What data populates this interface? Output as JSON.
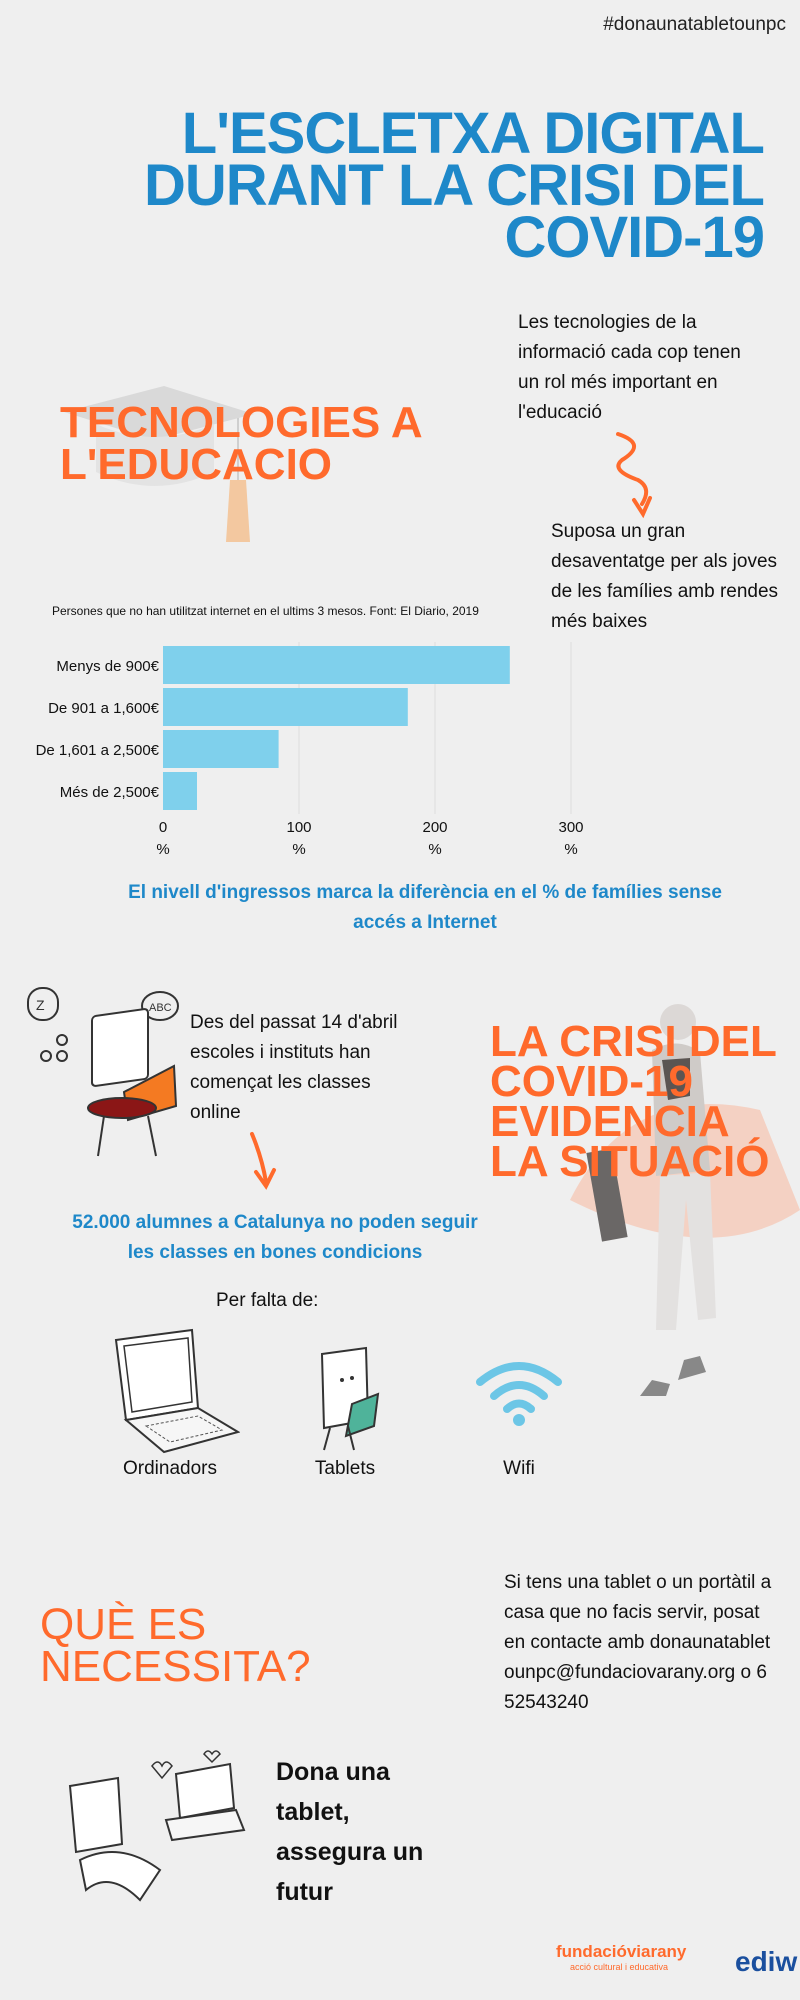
{
  "hashtag": "#donaunatabletounpc",
  "title_lines": [
    "L'ESCLETXA DIGITAL",
    "DURANT LA CRISI DEL",
    "COVID-19"
  ],
  "section1": {
    "title_lines": [
      "TECNOLOGIES A",
      "L'EDUCACIO"
    ],
    "text1": "Les tecnologies de la informació cada cop tenen un rol més important en l'educació",
    "text2": "Suposa un gran desaventatge per als joves de les famílies amb  rendes més baixes"
  },
  "chart_data": {
    "type": "bar",
    "orientation": "horizontal",
    "title": "Persones que no han utilitzat internet en el ultims 3 mesos. Font: El Diario, 2019",
    "categories": [
      "Menys de 900€",
      "De 901 a 1,600€",
      "De 1,601 a 2,500€",
      "Més de 2,500€"
    ],
    "values": [
      255,
      180,
      85,
      25
    ],
    "xticks": [
      "0",
      "100",
      "200",
      "300"
    ],
    "tick_unit": "%",
    "xlim": [
      0,
      300
    ],
    "grid": true,
    "color": "#7fd0ec"
  },
  "chart_note": "El nivell d'ingressos marca la diferència en el % de famílies sense accés a Internet",
  "section2": {
    "title_lines": [
      "LA CRISI DEL",
      "COVID-19",
      "EVIDENCIA",
      "LA SITUACIÓ"
    ],
    "text": "Des del passat 14 d'abril escoles i instituts han començat les classes online",
    "highlight": "52.000 alumnes a Catalunya no poden seguir les classes en bones condicions",
    "per_falta": "Per falta de:",
    "items": [
      {
        "label": "Ordinadors",
        "icon": "laptop-icon"
      },
      {
        "label": "Tablets",
        "icon": "tablet-icon"
      },
      {
        "label": "Wifi",
        "icon": "wifi-icon"
      }
    ]
  },
  "section3": {
    "title_lines": [
      "QUÈ ES",
      "NECESSITA?"
    ],
    "contact": "Si tens una tablet o un portàtil a casa que no facis servir, posat en contacte amb donaunatabletounpc@fundaciovarany.org o 652543240",
    "cta_lines": [
      "Dona una",
      "tablet,",
      "assegura un",
      "futur"
    ]
  },
  "logos": {
    "fundacio": "fundacióviarany",
    "fundacio_sub": "acció cultural i educativa",
    "ediw": "ediw"
  },
  "colors": {
    "orange": "#ff6a2c",
    "blue": "#1e88c9",
    "bar": "#7fd0ec",
    "background": "#efefef"
  }
}
